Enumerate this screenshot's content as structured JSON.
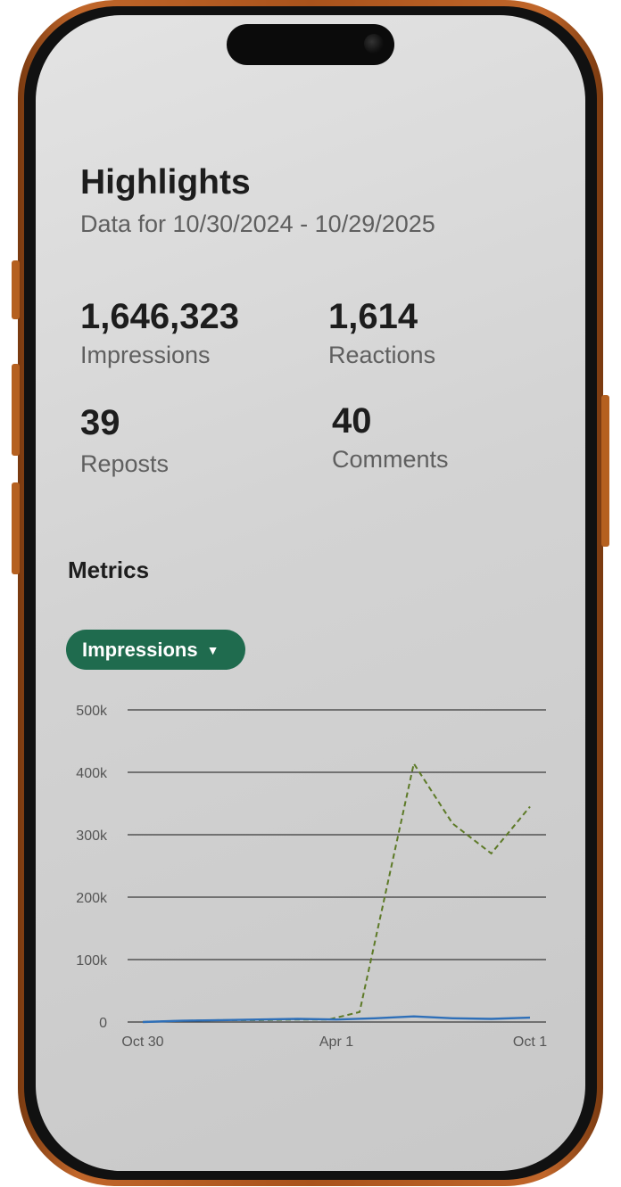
{
  "highlights": {
    "title": "Highlights",
    "subtitle": "Data for 10/30/2024 - 10/29/2025"
  },
  "stats": [
    {
      "value": "1,646,323",
      "label": "Impressions"
    },
    {
      "value": "1,614",
      "label": "Reactions"
    },
    {
      "value": "39",
      "label": "Reposts"
    },
    {
      "value": "40",
      "label": "Comments"
    }
  ],
  "metrics": {
    "title": "Metrics",
    "selector_label": "Impressions",
    "selector_icon": "caret-down-icon"
  },
  "colors": {
    "accent": "#1f6b4e",
    "series_dashed": "#5d7a27",
    "series_solid": "#2e6fb8",
    "phone_frame": "#b5601f"
  },
  "chart_data": {
    "type": "line",
    "x_ticks": [
      "Oct 30",
      "Apr 1",
      "Oct 1"
    ],
    "y_ticks": [
      "500k",
      "400k",
      "300k",
      "200k",
      "100k",
      "0"
    ],
    "ylim": [
      0,
      500000
    ],
    "grid": true,
    "series": [
      {
        "style": "dashed",
        "color": "#5d7a27",
        "points": [
          {
            "t": 0,
            "y": 0
          },
          {
            "t": 0.1,
            "y": 2000
          },
          {
            "t": 0.2,
            "y": 3000
          },
          {
            "t": 0.3,
            "y": 3000
          },
          {
            "t": 0.4,
            "y": 4000
          },
          {
            "t": 0.48,
            "y": 4000
          },
          {
            "t": 0.56,
            "y": 16000
          },
          {
            "t": 0.7,
            "y": 414000
          },
          {
            "t": 0.8,
            "y": 318000
          },
          {
            "t": 0.9,
            "y": 270000
          },
          {
            "t": 1.0,
            "y": 345000
          }
        ]
      },
      {
        "style": "solid",
        "color": "#2e6fb8",
        "points": [
          {
            "t": 0,
            "y": 0
          },
          {
            "t": 0.1,
            "y": 2000
          },
          {
            "t": 0.2,
            "y": 3000
          },
          {
            "t": 0.3,
            "y": 4000
          },
          {
            "t": 0.4,
            "y": 5000
          },
          {
            "t": 0.5,
            "y": 4000
          },
          {
            "t": 0.6,
            "y": 6000
          },
          {
            "t": 0.7,
            "y": 9000
          },
          {
            "t": 0.8,
            "y": 6000
          },
          {
            "t": 0.9,
            "y": 5000
          },
          {
            "t": 1.0,
            "y": 7000
          }
        ]
      }
    ]
  }
}
